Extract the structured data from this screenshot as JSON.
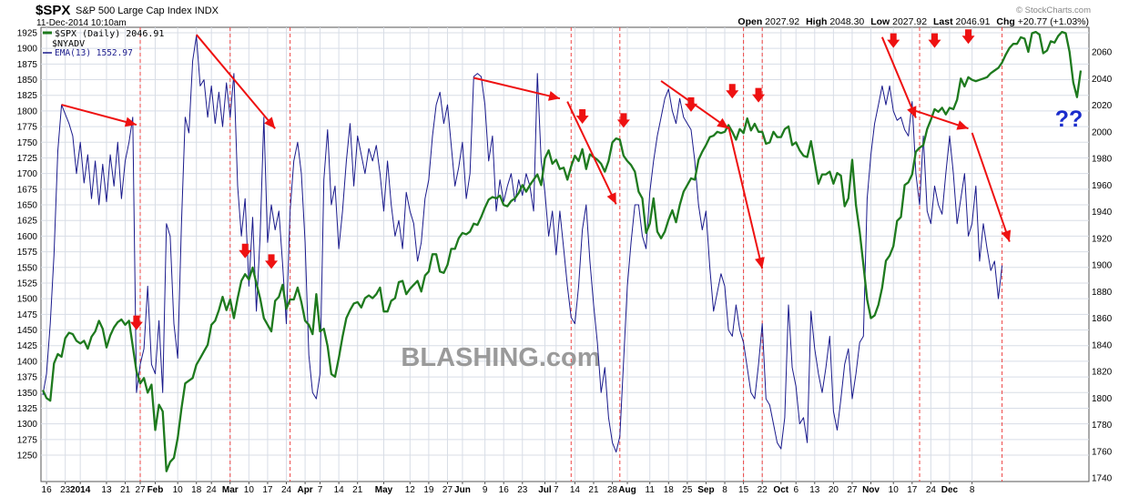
{
  "header": {
    "symbol": "$SPX",
    "name": "S&P 500 Large Cap Index",
    "exchange": "INDX",
    "date": "11-Dec-2014 10:10am",
    "credit": "© StockCharts.com",
    "open_label": "Open",
    "open": "2027.92",
    "high_label": "High",
    "high": "2048.30",
    "low_label": "Low",
    "low": "2027.92",
    "last_label": "Last",
    "last": "2046.91",
    "chg_label": "Chg",
    "chg": "+20.77 (+1.03%)"
  },
  "legend": {
    "spx": "$SPX (Daily) 2046.91",
    "nyadv": "$NYADV",
    "ema": "EMA(13) 1552.97"
  },
  "watermark": "BLASHING.com",
  "question_marks": "??",
  "colors": {
    "spx": "#1e7a1e",
    "nyadv": "#1a1a8c",
    "marker": "#ee1111",
    "vline": "#ee4444",
    "grid": "#d8dde6",
    "qmark": "#1a2ccc",
    "watermark": "#9a9a9a"
  },
  "chart_data": {
    "type": "line",
    "left_axis": {
      "min": 1225,
      "max": 1935,
      "ticks": [
        1250,
        1275,
        1300,
        1325,
        1350,
        1375,
        1400,
        1425,
        1450,
        1475,
        1500,
        1525,
        1550,
        1575,
        1600,
        1625,
        1650,
        1675,
        1700,
        1725,
        1750,
        1775,
        1800,
        1825,
        1850,
        1875,
        1900,
        1925
      ]
    },
    "right_axis": {
      "min": 1735,
      "max": 2080,
      "ticks": [
        1740,
        1760,
        1780,
        1800,
        1820,
        1840,
        1860,
        1880,
        1900,
        1920,
        1940,
        1960,
        1980,
        2000,
        2020,
        2040,
        2060
      ]
    },
    "x_ticks": [
      {
        "label": "16",
        "i": 1
      },
      {
        "label": "23",
        "i": 6
      },
      {
        "label": "2014",
        "i": 10,
        "bold": true
      },
      {
        "label": "13",
        "i": 17
      },
      {
        "label": "21",
        "i": 22
      },
      {
        "label": "27",
        "i": 26
      },
      {
        "label": "Feb",
        "i": 30,
        "bold": true
      },
      {
        "label": "10",
        "i": 36
      },
      {
        "label": "18",
        "i": 41
      },
      {
        "label": "24",
        "i": 45
      },
      {
        "label": "Mar",
        "i": 50,
        "bold": true
      },
      {
        "label": "10",
        "i": 55
      },
      {
        "label": "17",
        "i": 60
      },
      {
        "label": "24",
        "i": 65
      },
      {
        "label": "Apr",
        "i": 70,
        "bold": true
      },
      {
        "label": "7",
        "i": 74
      },
      {
        "label": "14",
        "i": 79
      },
      {
        "label": "21",
        "i": 84
      },
      {
        "label": "May",
        "i": 91,
        "bold": true
      },
      {
        "label": "12",
        "i": 98
      },
      {
        "label": "19",
        "i": 103
      },
      {
        "label": "27",
        "i": 108
      },
      {
        "label": "Jun",
        "i": 112,
        "bold": true
      },
      {
        "label": "9",
        "i": 118
      },
      {
        "label": "16",
        "i": 123
      },
      {
        "label": "23",
        "i": 128
      },
      {
        "label": "Jul",
        "i": 134,
        "bold": true
      },
      {
        "label": "7",
        "i": 137
      },
      {
        "label": "14",
        "i": 142
      },
      {
        "label": "21",
        "i": 147
      },
      {
        "label": "28",
        "i": 152
      },
      {
        "label": "Aug",
        "i": 156,
        "bold": true
      },
      {
        "label": "11",
        "i": 162
      },
      {
        "label": "18",
        "i": 167
      },
      {
        "label": "25",
        "i": 172
      },
      {
        "label": "Sep",
        "i": 177,
        "bold": true
      },
      {
        "label": "8",
        "i": 182
      },
      {
        "label": "15",
        "i": 187
      },
      {
        "label": "22",
        "i": 192
      },
      {
        "label": "Oct",
        "i": 197,
        "bold": true
      },
      {
        "label": "6",
        "i": 201
      },
      {
        "label": "13",
        "i": 206
      },
      {
        "label": "20",
        "i": 211
      },
      {
        "label": "27",
        "i": 216
      },
      {
        "label": "Nov",
        "i": 221,
        "bold": true
      },
      {
        "label": "10",
        "i": 227
      },
      {
        "label": "17",
        "i": 232
      },
      {
        "label": "24",
        "i": 237
      },
      {
        "label": "Dec",
        "i": 242,
        "bold": true
      },
      {
        "label": "8",
        "i": 248
      }
    ],
    "spx": [
      1806,
      1800,
      1798,
      1826,
      1833,
      1831,
      1845,
      1849,
      1848,
      1843,
      1841,
      1843,
      1837,
      1846,
      1850,
      1858,
      1852,
      1838,
      1847,
      1853,
      1857,
      1859,
      1855,
      1858,
      1839,
      1820,
      1811,
      1815,
      1804,
      1810,
      1776,
      1795,
      1790,
      1745,
      1752,
      1755,
      1770,
      1792,
      1811,
      1813,
      1815,
      1825,
      1830,
      1835,
      1840,
      1855,
      1858,
      1866,
      1876,
      1866,
      1874,
      1860,
      1875,
      1888,
      1893,
      1889,
      1898,
      1886,
      1875,
      1860,
      1855,
      1850,
      1873,
      1876,
      1885,
      1867,
      1874,
      1874,
      1883,
      1872,
      1858,
      1855,
      1848,
      1878,
      1850,
      1852,
      1839,
      1818,
      1816,
      1830,
      1846,
      1860,
      1866,
      1871,
      1872,
      1868,
      1875,
      1877,
      1875,
      1878,
      1883,
      1865,
      1865,
      1873,
      1875,
      1887,
      1888,
      1878,
      1882,
      1885,
      1888,
      1880,
      1892,
      1895,
      1908,
      1908,
      1895,
      1894,
      1900,
      1912,
      1912,
      1920,
      1924,
      1923,
      1925,
      1931,
      1930,
      1936,
      1943,
      1949,
      1951,
      1950,
      1952,
      1945,
      1944,
      1948,
      1950,
      1954,
      1960,
      1955,
      1960,
      1964,
      1968,
      1960,
      1980,
      1986,
      1976,
      1979,
      1972,
      1973,
      1964,
      1974,
      1982,
      1978,
      1987,
      1972,
      1983,
      1981,
      1979,
      1976,
      1970,
      1978,
      1992,
      1995,
      1994,
      1982,
      1978,
      1975,
      1970,
      1955,
      1950,
      1924,
      1931,
      1950,
      1925,
      1920,
      1925,
      1934,
      1941,
      1932,
      1945,
      1955,
      1960,
      1965,
      1964,
      1979,
      1985,
      1990,
      1996,
      1997,
      2000,
      1999,
      2000,
      2005,
      2000,
      1994,
      2002,
      1999,
      2010,
      2001,
      2006,
      2000,
      2000,
      1991,
      1992,
      2000,
      1996,
      1996,
      2002,
      2004,
      1990,
      1992,
      1986,
      1982,
      1981,
      1993,
      1977,
      1961,
      1968,
      1968,
      1970,
      1961,
      1969,
      1967,
      1944,
      1950,
      1979,
      1945,
      1925,
      1900,
      1874,
      1860,
      1862,
      1870,
      1883,
      1903,
      1907,
      1914,
      1933,
      1936,
      1960,
      1962,
      1968,
      1985,
      1988,
      1990,
      2002,
      2009,
      2017,
      2015,
      2018,
      2013,
      2018,
      2017,
      2024,
      2040,
      2034,
      2041,
      2039,
      2038,
      2039,
      2040,
      2041,
      2044,
      2046,
      2048,
      2052,
      2058,
      2063,
      2066,
      2066,
      2071,
      2070,
      2060,
      2074,
      2075,
      2073,
      2059,
      2061,
      2068,
      2067,
      2072,
      2075,
      2074,
      2060,
      2037,
      2026,
      2046
    ],
    "nyadv": [
      1346,
      1380,
      1460,
      1570,
      1736,
      1810,
      1795,
      1780,
      1760,
      1700,
      1750,
      1685,
      1730,
      1660,
      1720,
      1650,
      1715,
      1655,
      1730,
      1680,
      1750,
      1660,
      1720,
      1750,
      1790,
      1350,
      1395,
      1420,
      1520,
      1395,
      1380,
      1465,
      1350,
      1620,
      1600,
      1460,
      1405,
      1620,
      1790,
      1765,
      1880,
      1920,
      1840,
      1850,
      1790,
      1840,
      1780,
      1830,
      1775,
      1845,
      1790,
      1860,
      1680,
      1600,
      1660,
      1520,
      1630,
      1480,
      1600,
      1790,
      1590,
      1650,
      1610,
      1640,
      1555,
      1460,
      1640,
      1720,
      1750,
      1700,
      1590,
      1410,
      1350,
      1340,
      1380,
      1690,
      1770,
      1650,
      1680,
      1580,
      1640,
      1720,
      1780,
      1680,
      1760,
      1730,
      1700,
      1740,
      1720,
      1745,
      1700,
      1640,
      1720,
      1650,
      1600,
      1625,
      1580,
      1670,
      1640,
      1620,
      1560,
      1590,
      1660,
      1690,
      1760,
      1810,
      1830,
      1780,
      1810,
      1745,
      1680,
      1710,
      1750,
      1660,
      1700,
      1855,
      1860,
      1855,
      1810,
      1720,
      1760,
      1640,
      1690,
      1655,
      1680,
      1700,
      1655,
      1690,
      1665,
      1700,
      1680,
      1640,
      1860,
      1720,
      1670,
      1600,
      1640,
      1570,
      1640,
      1580,
      1520,
      1470,
      1460,
      1520,
      1610,
      1650,
      1560,
      1490,
      1430,
      1350,
      1390,
      1310,
      1270,
      1255,
      1280,
      1400,
      1520,
      1590,
      1650,
      1650,
      1600,
      1580,
      1670,
      1720,
      1760,
      1790,
      1820,
      1835,
      1800,
      1780,
      1820,
      1790,
      1780,
      1770,
      1720,
      1650,
      1610,
      1640,
      1550,
      1480,
      1510,
      1540,
      1520,
      1450,
      1440,
      1490,
      1450,
      1430,
      1390,
      1350,
      1340,
      1395,
      1460,
      1340,
      1330,
      1300,
      1270,
      1260,
      1310,
      1490,
      1390,
      1360,
      1300,
      1310,
      1270,
      1480,
      1420,
      1380,
      1350,
      1390,
      1440,
      1320,
      1290,
      1340,
      1395,
      1420,
      1340,
      1380,
      1430,
      1440,
      1660,
      1730,
      1780,
      1810,
      1840,
      1810,
      1840,
      1800,
      1785,
      1790,
      1770,
      1760,
      1815,
      1700,
      1650,
      1760,
      1640,
      1620,
      1680,
      1650,
      1635,
      1700,
      1760,
      1700,
      1620,
      1660,
      1700,
      1600,
      1620,
      1680,
      1560,
      1620,
      1580,
      1545,
      1560,
      1500,
      1553
    ],
    "vlines": [
      26,
      50,
      66,
      141,
      154,
      187,
      192,
      234,
      256
    ],
    "markers": [
      {
        "i": 25,
        "series": "spx",
        "v": 1851
      },
      {
        "i": 54,
        "series": "spx",
        "v": 1905
      },
      {
        "i": 61,
        "series": "spx",
        "v": 1897
      },
      {
        "i": 144,
        "series": "spx",
        "v": 2006
      },
      {
        "i": 155,
        "series": "spx",
        "v": 2003
      },
      {
        "i": 173,
        "series": "spx",
        "v": 2015
      },
      {
        "i": 184,
        "series": "spx",
        "v": 2025
      },
      {
        "i": 191,
        "series": "spx",
        "v": 2022
      },
      {
        "i": 227,
        "series": "spx",
        "v": 2063
      },
      {
        "i": 238,
        "series": "spx",
        "v": 2063
      },
      {
        "i": 247,
        "series": "spx",
        "v": 2066
      }
    ],
    "trend_lines": [
      {
        "from": [
          5,
          1810
        ],
        "to": [
          25,
          1778
        ]
      },
      {
        "from": [
          41,
          1922
        ],
        "to": [
          62,
          1772
        ]
      },
      {
        "from": [
          115,
          1853
        ],
        "to": [
          138,
          1820
        ]
      },
      {
        "from": [
          140,
          1815
        ],
        "to": [
          153,
          1651
        ]
      },
      {
        "from": [
          165,
          1848
        ],
        "to": [
          183,
          1772
        ]
      },
      {
        "from": [
          183,
          1775
        ],
        "to": [
          192,
          1548
        ]
      },
      {
        "from": [
          224,
          1918
        ],
        "to": [
          233,
          1789
        ]
      },
      {
        "from": [
          233,
          1800
        ],
        "to": [
          247,
          1772
        ]
      },
      {
        "from": [
          248,
          1765
        ],
        "to": [
          258,
          1591
        ]
      }
    ]
  }
}
